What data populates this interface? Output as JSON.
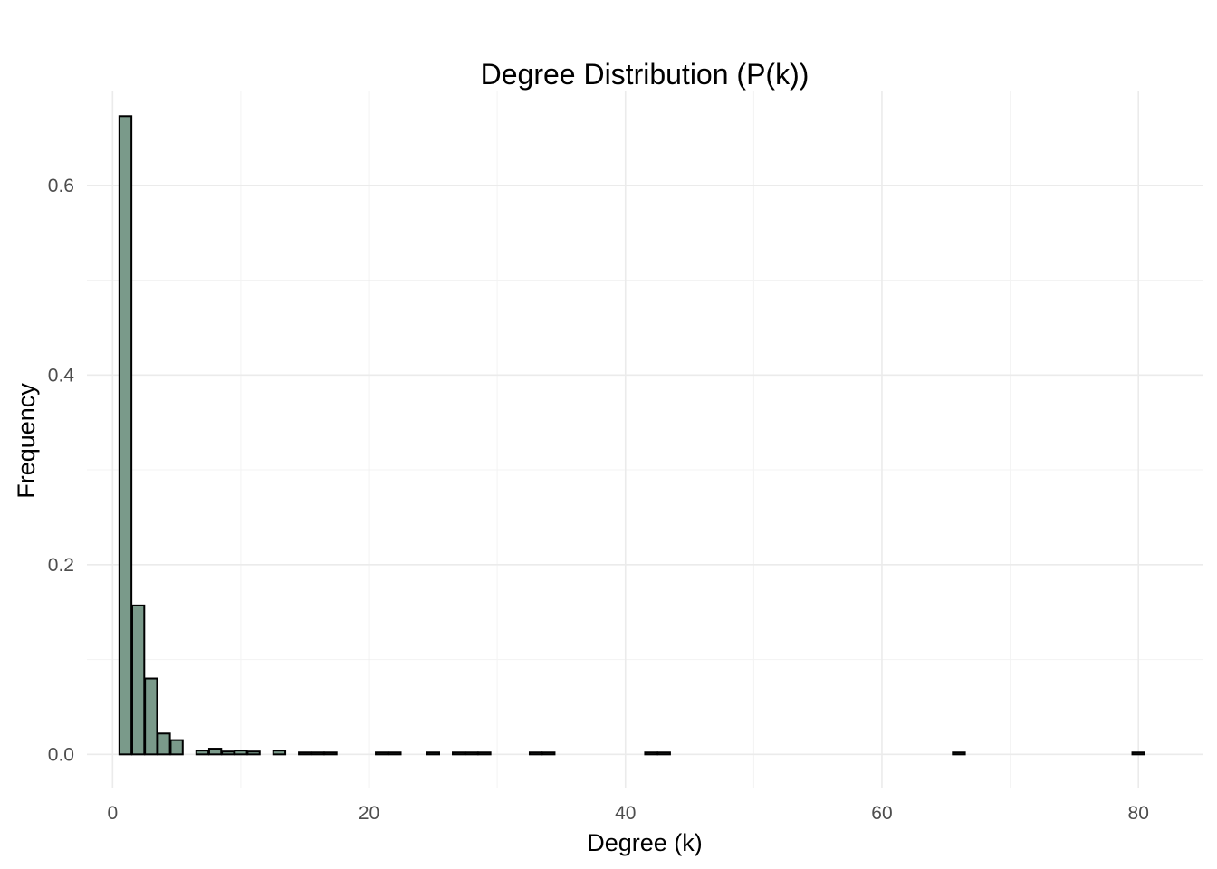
{
  "chart_data": {
    "type": "bar",
    "title": "Degree Distribution (P(k))",
    "xlabel": "Degree (k)",
    "ylabel": "Frequency",
    "xlim": [
      -2,
      85
    ],
    "ylim": [
      -0.035,
      0.7
    ],
    "x_ticks": [
      0,
      20,
      40,
      60,
      80
    ],
    "x_tick_labels": [
      "0",
      "20",
      "40",
      "60",
      "80"
    ],
    "y_ticks": [
      0.0,
      0.2,
      0.4,
      0.6
    ],
    "y_tick_labels": [
      "0.0",
      "0.2",
      "0.4",
      "0.6"
    ],
    "x_minor_ticks": [
      10,
      30,
      50,
      70
    ],
    "y_minor_ticks": [
      0.1,
      0.3,
      0.5
    ],
    "grid": true,
    "bar_color": "#7a9a8a",
    "bar_edge_color": "#000000",
    "x": [
      1,
      2,
      3,
      4,
      5,
      7,
      8,
      9,
      10,
      11,
      13,
      15,
      16,
      17,
      21,
      22,
      25,
      27,
      28,
      29,
      33,
      34,
      42,
      43,
      66,
      80
    ],
    "values": [
      0.673,
      0.157,
      0.08,
      0.022,
      0.015,
      0.004,
      0.006,
      0.003,
      0.004,
      0.003,
      0.004,
      0.002,
      0.002,
      0.002,
      0.002,
      0.002,
      0.002,
      0.002,
      0.002,
      0.002,
      0.002,
      0.002,
      0.002,
      0.002,
      0.002,
      0.002
    ]
  }
}
